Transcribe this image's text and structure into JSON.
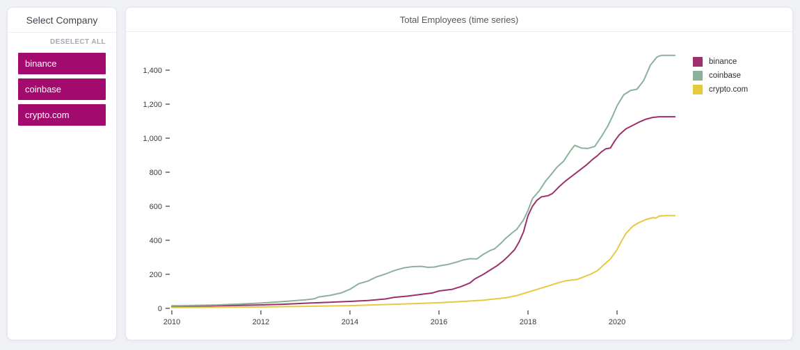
{
  "page": {
    "background": "#eff1f5"
  },
  "sidebar": {
    "title": "Select Company",
    "deselect_all_label": "DESELECT ALL",
    "companies": [
      "binance",
      "coinbase",
      "crypto.com"
    ],
    "button_color": "#a30a6e"
  },
  "chart_card": {
    "title": "Total Employees (time series)"
  },
  "chart_data": {
    "type": "line",
    "title": "Total Employees (time series)",
    "xlabel": "",
    "ylabel": "",
    "grid": false,
    "legend_position": "top-right",
    "xlim": [
      2010,
      2021.4
    ],
    "ylim": [
      0,
      1560
    ],
    "x_ticks": [
      2010,
      2012,
      2014,
      2016,
      2018,
      2020
    ],
    "y_ticks": [
      0,
      200,
      400,
      600,
      800,
      1000,
      1200,
      1400
    ],
    "y_tick_labels": [
      "0",
      "200",
      "400",
      "600",
      "800",
      "1,000",
      "1,200",
      "1,400"
    ],
    "series": [
      {
        "name": "binance",
        "color": "#9d2f6c",
        "points": [
          [
            2010,
            10
          ],
          [
            2010.5,
            12
          ],
          [
            2011,
            15
          ],
          [
            2011.5,
            17
          ],
          [
            2012,
            20
          ],
          [
            2012.5,
            24
          ],
          [
            2013,
            30
          ],
          [
            2013.5,
            35
          ],
          [
            2014,
            41
          ],
          [
            2014.4,
            46
          ],
          [
            2014.8,
            55
          ],
          [
            2015,
            65
          ],
          [
            2015.3,
            72
          ],
          [
            2015.6,
            82
          ],
          [
            2015.85,
            90
          ],
          [
            2016,
            102
          ],
          [
            2016.3,
            112
          ],
          [
            2016.5,
            128
          ],
          [
            2016.7,
            150
          ],
          [
            2016.8,
            172
          ],
          [
            2017,
            200
          ],
          [
            2017.15,
            225
          ],
          [
            2017.3,
            250
          ],
          [
            2017.45,
            280
          ],
          [
            2017.55,
            305
          ],
          [
            2017.7,
            345
          ],
          [
            2017.8,
            390
          ],
          [
            2017.9,
            450
          ],
          [
            2018,
            545
          ],
          [
            2018.1,
            600
          ],
          [
            2018.2,
            635
          ],
          [
            2018.3,
            655
          ],
          [
            2018.45,
            662
          ],
          [
            2018.55,
            675
          ],
          [
            2018.7,
            715
          ],
          [
            2018.85,
            750
          ],
          [
            2019,
            780
          ],
          [
            2019.15,
            810
          ],
          [
            2019.3,
            840
          ],
          [
            2019.45,
            875
          ],
          [
            2019.55,
            895
          ],
          [
            2019.65,
            920
          ],
          [
            2019.75,
            938
          ],
          [
            2019.85,
            942
          ],
          [
            2019.95,
            985
          ],
          [
            2020.05,
            1020
          ],
          [
            2020.2,
            1055
          ],
          [
            2020.35,
            1075
          ],
          [
            2020.5,
            1095
          ],
          [
            2020.65,
            1112
          ],
          [
            2020.8,
            1122
          ],
          [
            2020.95,
            1126
          ],
          [
            2021.3,
            1126
          ]
        ]
      },
      {
        "name": "coinbase",
        "color": "#8bb19a",
        "points": [
          [
            2010,
            15
          ],
          [
            2010.5,
            17
          ],
          [
            2011,
            20
          ],
          [
            2011.5,
            25
          ],
          [
            2012,
            31
          ],
          [
            2012.5,
            40
          ],
          [
            2013,
            50
          ],
          [
            2013.2,
            56
          ],
          [
            2013.3,
            67
          ],
          [
            2013.55,
            76
          ],
          [
            2013.8,
            90
          ],
          [
            2014,
            112
          ],
          [
            2014.2,
            145
          ],
          [
            2014.4,
            160
          ],
          [
            2014.6,
            185
          ],
          [
            2014.8,
            202
          ],
          [
            2015,
            222
          ],
          [
            2015.2,
            237
          ],
          [
            2015.4,
            245
          ],
          [
            2015.6,
            247
          ],
          [
            2015.75,
            241
          ],
          [
            2015.9,
            243
          ],
          [
            2016,
            249
          ],
          [
            2016.2,
            258
          ],
          [
            2016.4,
            272
          ],
          [
            2016.55,
            285
          ],
          [
            2016.7,
            292
          ],
          [
            2016.85,
            290
          ],
          [
            2017,
            318
          ],
          [
            2017.15,
            340
          ],
          [
            2017.25,
            350
          ],
          [
            2017.4,
            385
          ],
          [
            2017.5,
            412
          ],
          [
            2017.65,
            445
          ],
          [
            2017.75,
            465
          ],
          [
            2017.9,
            520
          ],
          [
            2018,
            575
          ],
          [
            2018.1,
            645
          ],
          [
            2018.25,
            690
          ],
          [
            2018.4,
            750
          ],
          [
            2018.5,
            780
          ],
          [
            2018.65,
            830
          ],
          [
            2018.8,
            865
          ],
          [
            2018.95,
            925
          ],
          [
            2019.05,
            958
          ],
          [
            2019.2,
            942
          ],
          [
            2019.35,
            940
          ],
          [
            2019.5,
            952
          ],
          [
            2019.65,
            1010
          ],
          [
            2019.8,
            1075
          ],
          [
            2019.9,
            1130
          ],
          [
            2020,
            1190
          ],
          [
            2020.15,
            1255
          ],
          [
            2020.3,
            1280
          ],
          [
            2020.45,
            1288
          ],
          [
            2020.6,
            1340
          ],
          [
            2020.75,
            1430
          ],
          [
            2020.9,
            1478
          ],
          [
            2021,
            1487
          ],
          [
            2021.3,
            1487
          ]
        ]
      },
      {
        "name": "crypto.com",
        "color": "#e6c93f",
        "points": [
          [
            2010,
            5
          ],
          [
            2011,
            6
          ],
          [
            2012,
            8
          ],
          [
            2013,
            12
          ],
          [
            2014,
            16
          ],
          [
            2014.5,
            20
          ],
          [
            2015,
            24
          ],
          [
            2015.5,
            28
          ],
          [
            2016,
            33
          ],
          [
            2016.5,
            40
          ],
          [
            2017,
            48
          ],
          [
            2017.5,
            62
          ],
          [
            2017.75,
            75
          ],
          [
            2018,
            95
          ],
          [
            2018.25,
            115
          ],
          [
            2018.5,
            135
          ],
          [
            2018.7,
            152
          ],
          [
            2018.85,
            162
          ],
          [
            2019,
            167
          ],
          [
            2019.1,
            170
          ],
          [
            2019.25,
            185
          ],
          [
            2019.4,
            200
          ],
          [
            2019.55,
            220
          ],
          [
            2019.7,
            255
          ],
          [
            2019.85,
            290
          ],
          [
            2020,
            345
          ],
          [
            2020.1,
            395
          ],
          [
            2020.2,
            440
          ],
          [
            2020.35,
            482
          ],
          [
            2020.5,
            505
          ],
          [
            2020.65,
            522
          ],
          [
            2020.8,
            533
          ],
          [
            2020.88,
            531
          ],
          [
            2020.95,
            543
          ],
          [
            2021.1,
            545
          ],
          [
            2021.3,
            545
          ]
        ]
      }
    ]
  }
}
